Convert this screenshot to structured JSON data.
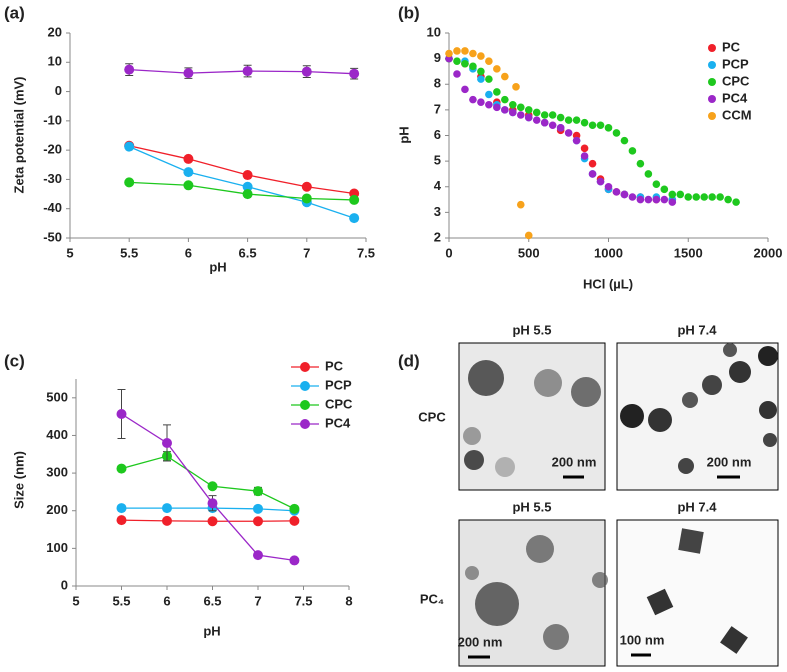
{
  "chart_data": [
    {
      "type": "line",
      "panel_label": "(a)",
      "x_label": "pH",
      "y_label": "Zeta potential (mV)",
      "x": [
        5.5,
        6,
        6.5,
        7,
        7.4
      ],
      "series": [
        {
          "color": "#9b27c8",
          "values": [
            7.5,
            6.3,
            7.0,
            6.8,
            6.1
          ],
          "errors": [
            2,
            1.8,
            2,
            2,
            1.8
          ]
        },
        {
          "color": "#f0202a",
          "values": [
            -18.5,
            -23,
            -28.5,
            -32.5,
            -34.8
          ]
        },
        {
          "color": "#1ab0ef",
          "values": [
            -18.8,
            -27.5,
            -32.5,
            -37.8,
            -43.2
          ]
        },
        {
          "color": "#1ec81e",
          "values": [
            -31,
            -32,
            -35,
            -36.5,
            -37
          ]
        }
      ],
      "xlim": [
        5,
        7.5
      ],
      "xticks": [
        5,
        5.5,
        6,
        6.5,
        7,
        7.5
      ],
      "ylim": [
        -50,
        20
      ],
      "yticks": [
        -50,
        -40,
        -30,
        -20,
        -10,
        0,
        10,
        20
      ],
      "legend": false
    },
    {
      "type": "scatter",
      "panel_label": "(b)",
      "x_label": "HCl (µL)",
      "y_label": "pH",
      "series": [
        {
          "name": "PC",
          "color": "#f0202a",
          "x": [
            0,
            100,
            200,
            300,
            400,
            500,
            600,
            700,
            800,
            850,
            900,
            950,
            1000,
            1050,
            1100,
            1200,
            1300,
            1400
          ],
          "values": [
            9.0,
            8.8,
            8.3,
            7.3,
            7.0,
            6.8,
            6.5,
            6.2,
            6.0,
            5.5,
            4.9,
            4.3,
            3.9,
            3.8,
            3.7,
            3.6,
            3.5,
            3.5
          ]
        },
        {
          "name": "PCP",
          "color": "#1ab0ef",
          "x": [
            0,
            100,
            150,
            200,
            250,
            300,
            350,
            400,
            500,
            600,
            700,
            800,
            850,
            900,
            950,
            1000,
            1100,
            1200,
            1300,
            1400
          ],
          "values": [
            9.0,
            8.9,
            8.6,
            8.2,
            7.6,
            7.2,
            7.0,
            6.9,
            6.7,
            6.5,
            6.3,
            5.8,
            5.1,
            4.5,
            4.2,
            3.9,
            3.7,
            3.6,
            3.6,
            3.5
          ]
        },
        {
          "name": "CPC",
          "color": "#1ec81e",
          "x": [
            0,
            50,
            100,
            150,
            200,
            250,
            300,
            350,
            400,
            450,
            500,
            550,
            600,
            650,
            700,
            750,
            800,
            850,
            900,
            950,
            1000,
            1050,
            1100,
            1150,
            1200,
            1250,
            1300,
            1350,
            1400,
            1450,
            1500,
            1550,
            1600,
            1650,
            1700,
            1750,
            1800
          ],
          "values": [
            9.0,
            8.9,
            8.8,
            8.7,
            8.5,
            8.2,
            7.7,
            7.4,
            7.2,
            7.1,
            7.0,
            6.9,
            6.8,
            6.8,
            6.7,
            6.6,
            6.6,
            6.5,
            6.4,
            6.4,
            6.3,
            6.1,
            5.8,
            5.4,
            4.9,
            4.5,
            4.1,
            3.9,
            3.7,
            3.7,
            3.6,
            3.6,
            3.6,
            3.6,
            3.6,
            3.5,
            3.4
          ]
        },
        {
          "name": "PC4",
          "color": "#9b27c8",
          "x": [
            0,
            50,
            100,
            150,
            200,
            250,
            300,
            350,
            400,
            450,
            500,
            550,
            600,
            650,
            700,
            750,
            800,
            850,
            900,
            950,
            1000,
            1050,
            1100,
            1150,
            1200,
            1250,
            1300,
            1350,
            1400
          ],
          "values": [
            9.0,
            8.4,
            7.8,
            7.4,
            7.3,
            7.2,
            7.1,
            7.0,
            6.9,
            6.8,
            6.7,
            6.6,
            6.5,
            6.4,
            6.3,
            6.1,
            5.8,
            5.2,
            4.5,
            4.2,
            4.0,
            3.8,
            3.7,
            3.6,
            3.5,
            3.5,
            3.5,
            3.5,
            3.4
          ]
        },
        {
          "name": "CCM",
          "color": "#f7a21b",
          "x": [
            0,
            50,
            100,
            150,
            200,
            250,
            300,
            350,
            420,
            450,
            500
          ],
          "values": [
            9.2,
            9.3,
            9.3,
            9.2,
            9.1,
            8.9,
            8.6,
            8.3,
            7.9,
            3.3,
            2.1
          ]
        }
      ],
      "xlim": [
        0,
        2000
      ],
      "xticks": [
        0,
        500,
        1000,
        1500,
        2000
      ],
      "ylim": [
        2,
        10
      ],
      "yticks": [
        2,
        3,
        4,
        5,
        6,
        7,
        8,
        9,
        10
      ],
      "legend": "upper right"
    },
    {
      "type": "line",
      "panel_label": "(c)",
      "x_label": "pH",
      "y_label": "Size (nm)",
      "x": [
        5.5,
        6,
        6.5,
        7,
        7.4
      ],
      "series": [
        {
          "name": "PC",
          "color": "#f0202a",
          "values": [
            175,
            173,
            172,
            172,
            173
          ],
          "errors": [
            3,
            3,
            3,
            3,
            3
          ]
        },
        {
          "name": "PCP",
          "color": "#1ab0ef",
          "values": [
            207,
            207,
            207,
            205,
            200
          ],
          "errors": [
            3,
            3,
            3,
            3,
            3
          ]
        },
        {
          "name": "CPC",
          "color": "#1ec81e",
          "values": [
            312,
            345,
            265,
            252,
            205
          ],
          "errors": [
            5,
            12,
            5,
            10,
            5
          ]
        },
        {
          "name": "PC4",
          "color": "#9b27c8",
          "values": [
            457,
            380,
            220,
            82,
            68
          ],
          "errors": [
            65,
            48,
            20,
            5,
            3
          ]
        }
      ],
      "xlim": [
        5,
        8
      ],
      "xticks": [
        5,
        5.5,
        6,
        6.5,
        7,
        7.5,
        8
      ],
      "ylim": [
        0,
        550
      ],
      "yticks": [
        0,
        100,
        200,
        300,
        400,
        500
      ],
      "legend": "upper right"
    }
  ],
  "micrographs": {
    "panel_label": "(d)",
    "rows": [
      {
        "label": "CPC",
        "images": [
          {
            "title": "pH 5.5",
            "scale_bar": "200 nm"
          },
          {
            "title": "pH 7.4",
            "scale_bar": "200 nm"
          }
        ]
      },
      {
        "label": "PC₄",
        "images": [
          {
            "title": "pH 5.5",
            "scale_bar": "200 nm"
          },
          {
            "title": "pH 7.4",
            "scale_bar": "100 nm"
          }
        ]
      }
    ]
  }
}
